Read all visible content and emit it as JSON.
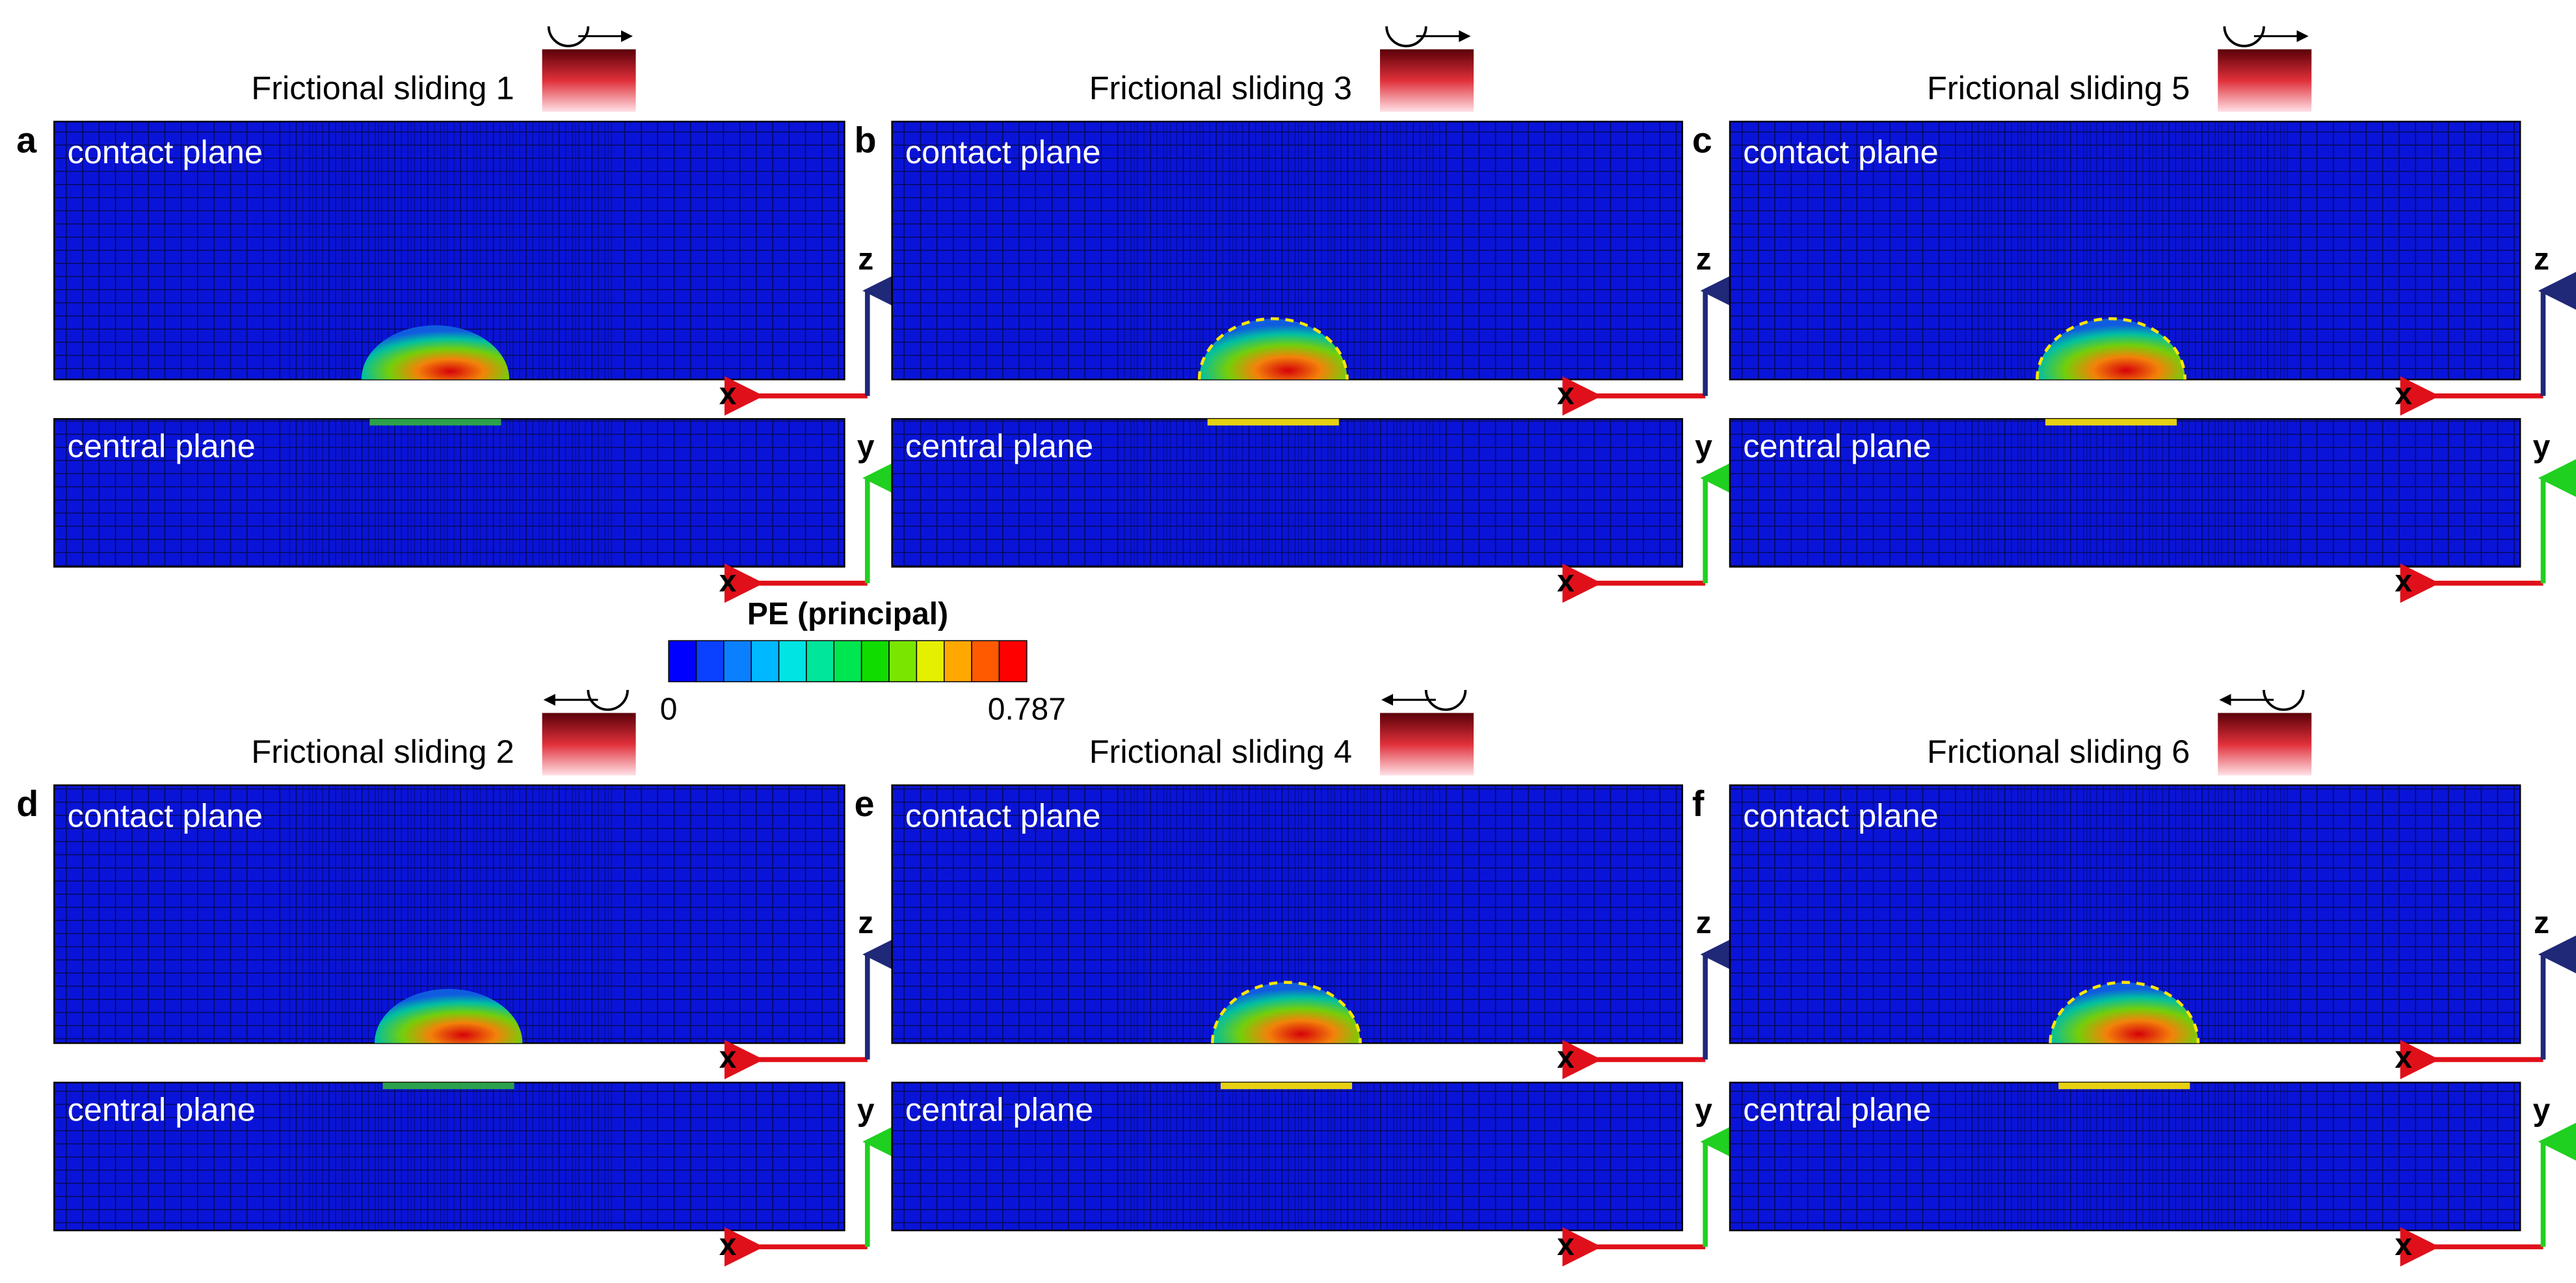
{
  "colorbar": {
    "title": "PE (principal)",
    "min": 0,
    "max": 0.787,
    "colors": [
      "#0000ff",
      "#0a40ff",
      "#0a80ff",
      "#00b8ff",
      "#00e4e4",
      "#00e69a",
      "#00e650",
      "#10dc00",
      "#7ae600",
      "#e4f000",
      "#ffa800",
      "#ff5a00",
      "#ff0000"
    ]
  },
  "panels": [
    {
      "letter": "a",
      "title": "Frictional sliding 1",
      "direction": "right",
      "contact_plane": "contact plane",
      "central_plane": "central plane",
      "contact_axes": [
        "x",
        "z"
      ],
      "central_axes": [
        "x",
        "y"
      ],
      "outline": false
    },
    {
      "letter": "b",
      "title": "Frictional sliding 3",
      "direction": "right",
      "contact_plane": "contact plane",
      "central_plane": "central plane",
      "contact_axes": [
        "x",
        "z"
      ],
      "central_axes": [
        "x",
        "y"
      ],
      "outline": true
    },
    {
      "letter": "c",
      "title": "Frictional sliding 5",
      "direction": "right",
      "contact_plane": "contact plane",
      "central_plane": "central plane",
      "contact_axes": [
        "x",
        "z"
      ],
      "central_axes": [
        "x",
        "y"
      ],
      "outline": true
    },
    {
      "letter": "d",
      "title": "Frictional sliding 2",
      "direction": "left",
      "contact_plane": "contact plane",
      "central_plane": "central plane",
      "contact_axes": [
        "x",
        "z"
      ],
      "central_axes": [
        "x",
        "y"
      ],
      "outline": false
    },
    {
      "letter": "e",
      "title": "Frictional sliding 4",
      "direction": "left",
      "contact_plane": "contact plane",
      "central_plane": "central plane",
      "contact_axes": [
        "x",
        "z"
      ],
      "central_axes": [
        "x",
        "y"
      ],
      "outline": true
    },
    {
      "letter": "f",
      "title": "Frictional sliding 6",
      "direction": "left",
      "contact_plane": "contact plane",
      "central_plane": "central plane",
      "contact_axes": [
        "x",
        "z"
      ],
      "central_axes": [
        "x",
        "y"
      ],
      "outline": true
    }
  ]
}
